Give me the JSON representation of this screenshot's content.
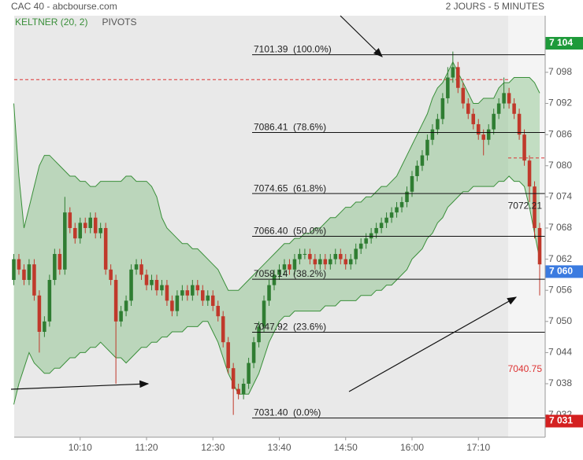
{
  "chart_data": {
    "type": "candlestick",
    "title": "CAC 40 - abcbourse.com",
    "subtitle": "2 JOURS - 5 MINUTES",
    "indicators": [
      {
        "name": "KELTNER (20, 2)",
        "color": "#3a8f3a"
      },
      {
        "name": "PIVOTS",
        "color": "#555555"
      }
    ],
    "categories": [
      null,
      null,
      null,
      null,
      null,
      null,
      null,
      null,
      null,
      null,
      null,
      null,
      null,
      "10:10",
      null,
      null,
      null,
      null,
      null,
      null,
      null,
      null,
      null,
      null,
      null,
      null,
      "11:20",
      null,
      null,
      null,
      null,
      null,
      null,
      null,
      null,
      null,
      null,
      null,
      null,
      "12:30",
      null,
      null,
      null,
      null,
      null,
      null,
      null,
      null,
      null,
      null,
      null,
      null,
      "13:40",
      null,
      null,
      null,
      null,
      null,
      null,
      null,
      null,
      null,
      null,
      null,
      null,
      "14:50",
      null,
      null,
      null,
      null,
      null,
      null,
      null,
      null,
      null,
      null,
      null,
      null,
      "16:00",
      null,
      null,
      null,
      null,
      null,
      null,
      null,
      null,
      null,
      null,
      null,
      null,
      "17:10",
      null,
      null,
      null,
      null,
      null,
      null,
      null,
      null,
      null,
      null,
      null,
      null
    ],
    "open": [
      7058,
      7062,
      7060,
      7058,
      7061,
      7055,
      7048,
      7050,
      7058,
      7063,
      7060,
      7071,
      7068,
      7066,
      7069,
      7068,
      7070,
      7067,
      7068,
      7060,
      7058,
      7050,
      7052,
      7054,
      7060,
      7061,
      7059,
      7057,
      7058,
      7056,
      7057,
      7054,
      7052,
      7055,
      7056,
      7055,
      7057,
      7056,
      7054,
      7055,
      7053,
      7051,
      7046,
      7041,
      7037,
      7036,
      7038,
      7042,
      7046,
      7049,
      7054,
      7057,
      7059,
      7060,
      7061,
      7060,
      7062,
      7063,
      7063,
      7062,
      7061,
      7062,
      7061,
      7062,
      7063,
      7062,
      7061,
      7062,
      7064,
      7065,
      7066,
      7067,
      7068,
      7069,
      7070,
      7071,
      7072,
      7073,
      7075,
      7078,
      7080,
      7082,
      7085,
      7087,
      7089,
      7093,
      7097,
      7099,
      7095,
      7092,
      7090,
      7088,
      7086,
      7085,
      7087,
      7090,
      7092,
      7094,
      7092,
      7090,
      7086,
      7081,
      7076,
      7068
    ],
    "high": [
      7063,
      7063,
      7061,
      7062,
      7062,
      7056,
      7051,
      7059,
      7064,
      7064,
      7074,
      7072,
      7069,
      7070,
      7070,
      7071,
      7071,
      7069,
      7069,
      7061,
      7059,
      7053,
      7055,
      7061,
      7062,
      7062,
      7060,
      7059,
      7059,
      7058,
      7058,
      7055,
      7056,
      7057,
      7057,
      7058,
      7058,
      7057,
      7056,
      7056,
      7054,
      7052,
      7047,
      7042,
      7038,
      7039,
      7043,
      7047,
      7050,
      7055,
      7058,
      7060,
      7061,
      7062,
      7062,
      7063,
      7064,
      7064,
      7064,
      7063,
      7063,
      7063,
      7063,
      7064,
      7064,
      7063,
      7063,
      7065,
      7066,
      7067,
      7068,
      7069,
      7070,
      7071,
      7072,
      7073,
      7074,
      7076,
      7079,
      7081,
      7083,
      7086,
      7088,
      7090,
      7094,
      7099,
      7102,
      7100,
      7096,
      7093,
      7091,
      7089,
      7087,
      7088,
      7091,
      7093,
      7097,
      7095,
      7093,
      7091,
      7087,
      7082,
      7077,
      7069
    ],
    "low": [
      7057,
      7059,
      7057,
      7057,
      7054,
      7044,
      7047,
      7049,
      7057,
      7059,
      7059,
      7067,
      7065,
      7065,
      7067,
      7067,
      7066,
      7066,
      7059,
      7057,
      7038,
      7049,
      7051,
      7053,
      7059,
      7058,
      7056,
      7056,
      7055,
      7055,
      7053,
      7051,
      7051,
      7054,
      7054,
      7054,
      7055,
      7053,
      7053,
      7052,
      7050,
      7045,
      7040,
      7032,
      7035,
      7035,
      7037,
      7041,
      7045,
      7048,
      7053,
      7056,
      7058,
      7059,
      7059,
      7059,
      7061,
      7062,
      7061,
      7060,
      7060,
      7060,
      7060,
      7061,
      7061,
      7060,
      7060,
      7061,
      7063,
      7064,
      7065,
      7066,
      7067,
      7068,
      7069,
      7070,
      7071,
      7072,
      7074,
      7077,
      7079,
      7081,
      7084,
      7086,
      7088,
      7092,
      7096,
      7094,
      7091,
      7089,
      7087,
      7085,
      7082,
      7084,
      7086,
      7089,
      7091,
      7091,
      7089,
      7085,
      7080,
      7073,
      7066,
      7055
    ],
    "close": [
      7062,
      7060,
      7058,
      7061,
      7055,
      7048,
      7050,
      7058,
      7063,
      7060,
      7071,
      7068,
      7066,
      7069,
      7068,
      7070,
      7067,
      7068,
      7060,
      7058,
      7050,
      7052,
      7054,
      7060,
      7061,
      7059,
      7057,
      7058,
      7056,
      7057,
      7054,
      7052,
      7055,
      7056,
      7055,
      7057,
      7056,
      7054,
      7055,
      7053,
      7051,
      7046,
      7041,
      7037,
      7036,
      7038,
      7042,
      7046,
      7049,
      7054,
      7057,
      7059,
      7060,
      7061,
      7060,
      7062,
      7063,
      7063,
      7062,
      7061,
      7062,
      7061,
      7062,
      7063,
      7062,
      7061,
      7062,
      7064,
      7065,
      7066,
      7067,
      7068,
      7069,
      7070,
      7071,
      7072,
      7073,
      7075,
      7078,
      7080,
      7082,
      7085,
      7087,
      7089,
      7093,
      7097,
      7099,
      7095,
      7092,
      7090,
      7088,
      7086,
      7085,
      7087,
      7090,
      7092,
      7094,
      7092,
      7090,
      7086,
      7081,
      7076,
      7068,
      7061
    ],
    "up_color": "#2f7d32",
    "down_color": "#c0392b",
    "keltner": {
      "color": "#3a8f3a",
      "fill": "rgba(90,175,90,0.32)",
      "upper": [
        7092,
        7078,
        7068,
        7072,
        7076,
        7080,
        7082,
        7082,
        7081,
        7080,
        7079,
        7078,
        7078,
        7077,
        7077,
        7076,
        7076,
        7077,
        7077,
        7077,
        7077,
        7077,
        7078,
        7078,
        7077,
        7077,
        7077,
        7076,
        7074,
        7070,
        7068,
        7067,
        7066,
        7065,
        7065,
        7064,
        7064,
        7063,
        7062,
        7061,
        7060,
        7058,
        7056,
        7056,
        7056,
        7057,
        7058,
        7059,
        7060,
        7061,
        7062,
        7063,
        7064,
        7065,
        7065,
        7066,
        7066,
        7067,
        7067,
        7068,
        7068,
        7069,
        7070,
        7070,
        7071,
        7072,
        7072,
        7073,
        7073,
        7074,
        7074,
        7075,
        7076,
        7076,
        7077,
        7078,
        7080,
        7082,
        7084,
        7086,
        7088,
        7090,
        7093,
        7095,
        7096,
        7098,
        7100,
        7098,
        7096,
        7094,
        7092,
        7092,
        7093,
        7093,
        7093,
        7095,
        7096,
        7096,
        7097,
        7097,
        7097,
        7097,
        7096,
        7094
      ],
      "lower": [
        7034,
        7038,
        7041,
        7044,
        7042,
        7041,
        7040,
        7040,
        7041,
        7041,
        7042,
        7043,
        7043,
        7044,
        7044,
        7045,
        7045,
        7046,
        7045,
        7044,
        7043,
        7043,
        7042,
        7043,
        7044,
        7045,
        7045,
        7046,
        7046,
        7047,
        7047,
        7048,
        7048,
        7048,
        7049,
        7049,
        7049,
        7050,
        7050,
        7048,
        7046,
        7043,
        7040,
        7038,
        7036,
        7036,
        7036,
        7038,
        7040,
        7043,
        7046,
        7048,
        7050,
        7051,
        7051,
        7052,
        7052,
        7052,
        7052,
        7052,
        7052,
        7053,
        7053,
        7053,
        7054,
        7054,
        7054,
        7054,
        7055,
        7055,
        7055,
        7056,
        7056,
        7057,
        7057,
        7058,
        7059,
        7060,
        7062,
        7063,
        7064,
        7066,
        7067,
        7069,
        7070,
        7072,
        7073,
        7074,
        7075,
        7075,
        7076,
        7076,
        7076,
        7076,
        7076,
        7077,
        7077,
        7078,
        7077,
        7077,
        7076,
        7072,
        7067,
        7062
      ]
    },
    "ylim": [
      7027.7,
      7108.9
    ],
    "yticks": [
      {
        "value": 7032,
        "label": "7 032"
      },
      {
        "value": 7038,
        "label": "7 038"
      },
      {
        "value": 7044,
        "label": "7 044"
      },
      {
        "value": 7050,
        "label": "7 050"
      },
      {
        "value": 7056,
        "label": "7 056"
      },
      {
        "value": 7062,
        "label": "7 062"
      },
      {
        "value": 7068,
        "label": "7 068"
      },
      {
        "value": 7074,
        "label": "7 074"
      },
      {
        "value": 7080,
        "label": "7 080"
      },
      {
        "value": 7086,
        "label": "7 086"
      },
      {
        "value": 7092,
        "label": "7 092"
      },
      {
        "value": 7098,
        "label": "7 098"
      },
      {
        "value": 7104,
        "label": "7 104"
      }
    ],
    "fib_levels": [
      {
        "value": 7101.39,
        "label": "7101.39  (100.0%)"
      },
      {
        "value": 7086.41,
        "label": "7086.41  (78.6%)"
      },
      {
        "value": 7074.65,
        "label": "7074.65  (61.8%)"
      },
      {
        "value": 7066.4,
        "label": "7066.40  (50.0%)"
      },
      {
        "value": 7058.14,
        "label": "7058.14  (38.2%)"
      },
      {
        "value": 7047.92,
        "label": "7047.92  (23.6%)"
      },
      {
        "value": 7031.4,
        "label": "7031.40  (0.0%)"
      }
    ],
    "dashed_levels": [
      {
        "value": 7096.6,
        "color": "#dd3333"
      },
      {
        "value": 7081.5,
        "color": "#dd3333"
      }
    ],
    "pivot_labels": [
      {
        "value": 7072.21,
        "color": "#222222"
      },
      {
        "value": 7040.75,
        "color": "#dd3333"
      }
    ],
    "price_markers": [
      {
        "value": 7103.6,
        "label": "7 104",
        "color": "#1e9a3a"
      },
      {
        "value": 7059.6,
        "label": "7 060",
        "color": "#3b7be0"
      },
      {
        "value": 7030.8,
        "label": "7 031",
        "color": "#d42020"
      }
    ]
  }
}
